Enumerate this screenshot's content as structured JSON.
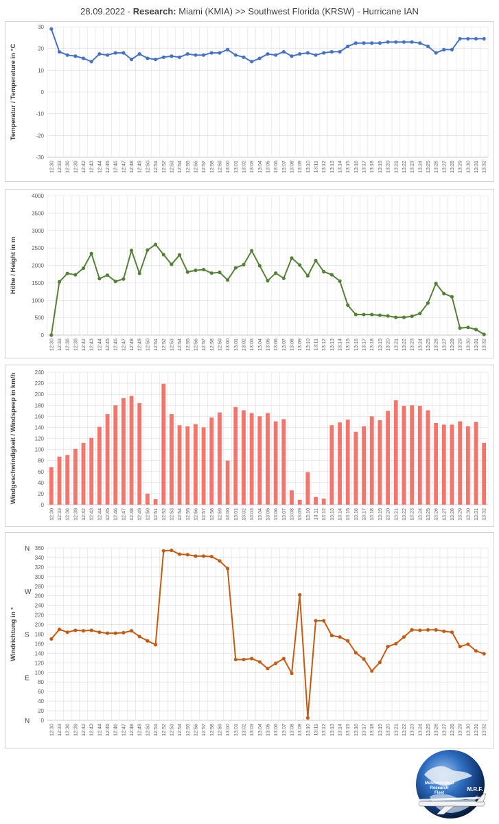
{
  "title": {
    "date": "28.09.2022 - ",
    "research": "Research:",
    "rest": " Miami (KMIA) >> Southwest Florida (KRSW) - Hurricane IAN"
  },
  "times": [
    "12:30",
    "12:33",
    "12:36",
    "12:39",
    "12:42",
    "12:43",
    "12:44",
    "12:45",
    "12:46",
    "12:47",
    "12:48",
    "12:49",
    "12:50",
    "12:51",
    "12:52",
    "12:53",
    "12:54",
    "12:55",
    "12:56",
    "12:57",
    "12:58",
    "12:59",
    "13:00",
    "13:01",
    "13:02",
    "13:03",
    "13:04",
    "13:05",
    "13:06",
    "13:07",
    "13:08",
    "13:09",
    "13:10",
    "13:11",
    "13:12",
    "13:13",
    "13:14",
    "13:15",
    "13:16",
    "13:17",
    "13:18",
    "13:19",
    "13:20",
    "13:21",
    "13:22",
    "13:23",
    "13:24",
    "13:25",
    "13:26",
    "13:27",
    "13:28",
    "13:29",
    "13:30",
    "13:31",
    "13:32"
  ],
  "colors": {
    "temperature": "#4472c4",
    "height": "#548235",
    "windspeed": "#f4756b",
    "winddir": "#c55a11",
    "grid": "#d9d9d9"
  },
  "chart_data": [
    {
      "type": "line",
      "ylabel": "Temperatur / Temperature in °C",
      "ylim": [
        -30,
        30
      ],
      "yticks": [
        -30,
        -20,
        -10,
        0,
        10,
        20,
        30
      ],
      "grid": true,
      "series": [
        {
          "values": [
            29,
            18.5,
            17,
            16.5,
            15.5,
            14,
            17.5,
            17,
            18,
            18,
            15,
            17.5,
            15.5,
            15,
            16,
            16.5,
            16,
            17.5,
            17,
            17,
            18,
            18,
            19.5,
            17,
            16,
            14,
            15.5,
            17.5,
            17,
            18.5,
            16.5,
            17.5,
            18,
            17,
            18,
            18.5,
            18.5,
            21,
            22.5,
            22.5,
            22.5,
            22.5,
            23,
            23,
            23,
            23,
            22.5,
            21,
            18,
            19.5,
            19.5,
            24.5,
            24.5,
            24.5,
            24.5
          ]
        }
      ]
    },
    {
      "type": "line",
      "ylabel": "Höhe / Height in m",
      "ylim": [
        0,
        4000
      ],
      "yticks": [
        0,
        500,
        1000,
        1500,
        2000,
        2500,
        3000,
        3500,
        4000
      ],
      "grid": true,
      "series": [
        {
          "values": [
            0,
            1530,
            1770,
            1730,
            1920,
            2340,
            1620,
            1720,
            1540,
            1610,
            2430,
            1770,
            2440,
            2600,
            2310,
            2030,
            2300,
            1810,
            1860,
            1880,
            1780,
            1800,
            1580,
            1930,
            2020,
            2420,
            1990,
            1560,
            1780,
            1630,
            2210,
            2010,
            1700,
            2140,
            1820,
            1730,
            1550,
            860,
            590,
            590,
            590,
            570,
            550,
            510,
            510,
            540,
            620,
            920,
            1480,
            1190,
            1100,
            200,
            220,
            160,
            20
          ]
        }
      ]
    },
    {
      "type": "bar",
      "ylabel": "Windgeschwindigkeit / Windspeep in km/h",
      "ylim": [
        0,
        240
      ],
      "yticks": [
        0,
        20,
        40,
        60,
        80,
        100,
        120,
        140,
        160,
        180,
        200,
        220,
        240
      ],
      "grid": true,
      "series": [
        {
          "values": [
            68,
            87,
            90,
            101,
            112,
            121,
            141,
            164,
            180,
            193,
            197,
            184,
            20,
            10,
            219,
            164,
            144,
            142,
            146,
            140,
            158,
            167,
            80,
            177,
            171,
            166,
            160,
            166,
            151,
            155,
            26,
            9,
            59,
            14,
            11,
            144,
            149,
            154,
            132,
            142,
            160,
            153,
            170,
            189,
            179,
            180,
            179,
            171,
            148,
            145,
            145,
            151,
            142,
            150,
            112
          ]
        }
      ]
    },
    {
      "type": "line",
      "ylabel": "Windrichtung in °",
      "ylim": [
        0,
        360
      ],
      "yticks": [
        0,
        20,
        40,
        60,
        80,
        100,
        120,
        140,
        160,
        180,
        200,
        220,
        240,
        260,
        280,
        300,
        320,
        340,
        360
      ],
      "compass": [
        "N",
        "E",
        "S",
        "W",
        "N"
      ],
      "grid": true,
      "series": [
        {
          "values": [
            170,
            190,
            184,
            188,
            187,
            188,
            184,
            182,
            182,
            183,
            187,
            175,
            166,
            158,
            354,
            355,
            347,
            346,
            343,
            343,
            342,
            333,
            317,
            127,
            127,
            129,
            122,
            108,
            119,
            129,
            98,
            262,
            5,
            208,
            208,
            177,
            174,
            166,
            141,
            128,
            103,
            121,
            154,
            160,
            174,
            189,
            188,
            189,
            189,
            186,
            184,
            154,
            159,
            145,
            139
          ]
        }
      ]
    }
  ],
  "logo": {
    "line1": "Meteorological",
    "line2": "Research",
    "line3": "Fleet",
    "brand": "M.R.F."
  }
}
